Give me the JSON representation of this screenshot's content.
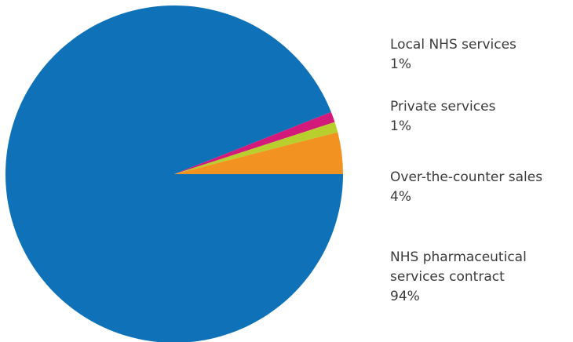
{
  "chart_data": {
    "type": "pie",
    "title": "",
    "slices": [
      {
        "label_lines": [
          "NHS pharmaceutical",
          "services contract"
        ],
        "percent_label": "94%",
        "value": 94,
        "color": "#0f72b8"
      },
      {
        "label_lines": [
          "Over-the-counter sales"
        ],
        "percent_label": "4%",
        "value": 4,
        "color": "#f29221"
      },
      {
        "label_lines": [
          "Private services"
        ],
        "percent_label": "1%",
        "value": 1,
        "color": "#b9cf2e"
      },
      {
        "label_lines": [
          "Local NHS services"
        ],
        "percent_label": "1%",
        "value": 1,
        "color": "#d3197a"
      }
    ],
    "legend_position": "right"
  }
}
